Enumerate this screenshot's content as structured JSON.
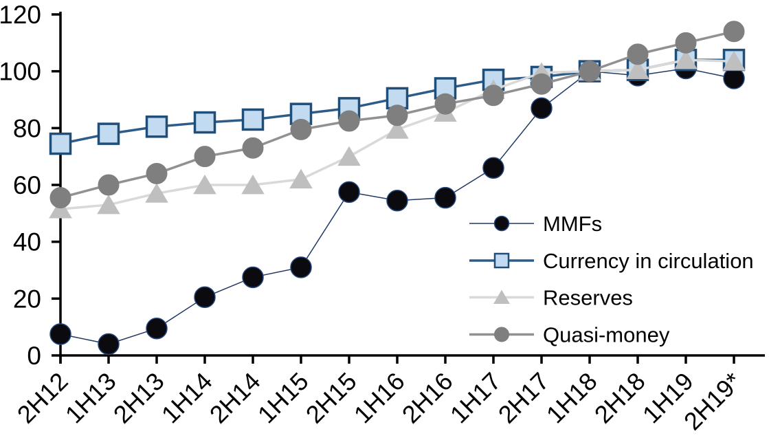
{
  "chart_data": {
    "type": "line",
    "title": "",
    "categories": [
      "2H12",
      "1H13",
      "2H13",
      "1H14",
      "2H14",
      "1H15",
      "2H15",
      "1H16",
      "2H16",
      "1H17",
      "2H17",
      "1H18",
      "2H18",
      "1H19",
      "2H19*"
    ],
    "series": [
      {
        "name": "MMFs",
        "marker": "circle",
        "line_color": "#203864",
        "line_width": 1.5,
        "marker_fill": "#0a0a0f",
        "marker_stroke": "#24477f",
        "marker_stroke_width": 1.5,
        "values": [
          7.5,
          4,
          9.5,
          20.5,
          27.5,
          31,
          57.5,
          54.5,
          55.5,
          66,
          87,
          100,
          98.5,
          101,
          97.5
        ]
      },
      {
        "name": "Currency in circulation",
        "marker": "square",
        "line_color": "#2e5c8a",
        "line_width": 3.5,
        "marker_fill": "#c3dbf0",
        "marker_stroke": "#1f4e79",
        "marker_stroke_width": 3.5,
        "values": [
          74.5,
          78,
          80.5,
          82,
          83,
          85,
          87,
          90.5,
          94,
          97,
          98,
          100,
          100.5,
          104,
          104
        ]
      },
      {
        "name": "Reserves",
        "marker": "triangle",
        "line_color": "#d9d9d9",
        "line_width": 3.5,
        "marker_fill": "#bfbfbf",
        "marker_stroke": "#bfbfbf",
        "marker_stroke_width": 1,
        "values": [
          51.5,
          53,
          57,
          60,
          60,
          62,
          70,
          79.5,
          85.5,
          93.5,
          99.5,
          100,
          100.5,
          104,
          103.5
        ]
      },
      {
        "name": "Quasi-money",
        "marker": "circle",
        "line_color": "#919191",
        "line_width": 3.5,
        "marker_fill": "#7f7f7f",
        "marker_stroke": "#7f7f7f",
        "marker_stroke_width": 1,
        "values": [
          55.5,
          60,
          64,
          70,
          73,
          79.5,
          82.5,
          84.5,
          88.5,
          91.5,
          95.5,
          100,
          106,
          110,
          114
        ]
      }
    ],
    "x_axis": {
      "tick_labels": [
        "2H12",
        "1H13",
        "2H13",
        "1H14",
        "2H14",
        "1H15",
        "2H15",
        "1H16",
        "2H16",
        "1H17",
        "2H17",
        "1H18",
        "2H18",
        "1H19",
        "2H19*"
      ],
      "label_rotation_deg": 45
    },
    "y_axis": {
      "min": 0,
      "max": 120,
      "step": 20,
      "tick_labels": [
        "0",
        "20",
        "40",
        "60",
        "80",
        "100",
        "120"
      ]
    },
    "legend": {
      "position": "inside-right",
      "entries": [
        "MMFs",
        "Currency in circulation",
        "Reserves",
        "Quasi-money"
      ]
    },
    "grid": false,
    "axis_color": "#000000",
    "background": "#ffffff"
  }
}
